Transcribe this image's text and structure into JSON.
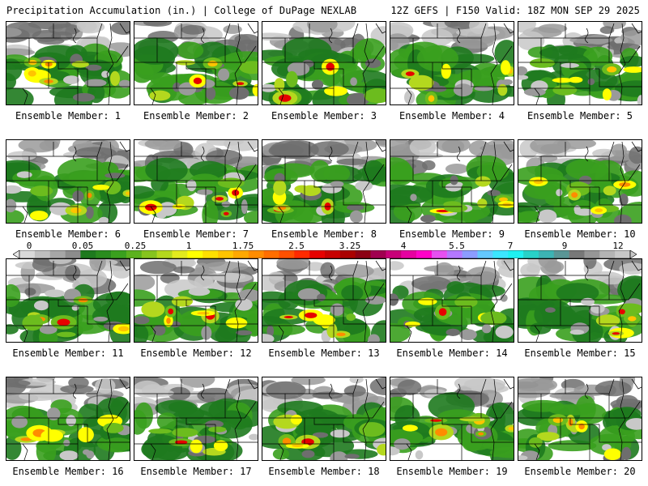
{
  "header": {
    "title": "Precipitation Accumulation (in.) | College of DuPage NEXLAB",
    "run_info": "12Z GEFS | F150 Valid: 18Z MON SEP 29 2025"
  },
  "members": [
    {
      "label": "Ensemble Member: 1"
    },
    {
      "label": "Ensemble Member: 2"
    },
    {
      "label": "Ensemble Member: 3"
    },
    {
      "label": "Ensemble Member: 4"
    },
    {
      "label": "Ensemble Member: 5"
    },
    {
      "label": "Ensemble Member: 6"
    },
    {
      "label": "Ensemble Member: 7"
    },
    {
      "label": "Ensemble Member: 8"
    },
    {
      "label": "Ensemble Member: 9"
    },
    {
      "label": "Ensemble Member: 10"
    },
    {
      "label": "Ensemble Member: 11"
    },
    {
      "label": "Ensemble Member: 12"
    },
    {
      "label": "Ensemble Member: 13"
    },
    {
      "label": "Ensemble Member: 14"
    },
    {
      "label": "Ensemble Member: 15"
    },
    {
      "label": "Ensemble Member: 16"
    },
    {
      "label": "Ensemble Member: 17"
    },
    {
      "label": "Ensemble Member: 18"
    },
    {
      "label": "Ensemble Member: 19"
    },
    {
      "label": "Ensemble Member: 20"
    }
  ],
  "colorbar": {
    "tick_labels": [
      "0",
      "0.05",
      "0.25",
      "1",
      "1.75",
      "2.5",
      "3.25",
      "4",
      "5.5",
      "7",
      "9",
      "12"
    ],
    "colors": [
      "#d9d9d9",
      "#bfbfbf",
      "#a6a6a6",
      "#8c8c8c",
      "#1e7a1e",
      "#2a8c1e",
      "#3aa01e",
      "#5cb21e",
      "#86c41e",
      "#b4d81e",
      "#e2ea1e",
      "#ffff00",
      "#ffe000",
      "#ffc400",
      "#ffa800",
      "#ff8c00",
      "#ff6e00",
      "#ff5000",
      "#ff2a00",
      "#e60000",
      "#c80000",
      "#aa0000",
      "#8c0014",
      "#a00050",
      "#c80078",
      "#e600a0",
      "#ff00c8",
      "#e650f0",
      "#b478ff",
      "#8c9cff",
      "#64c8ff",
      "#3ce6ff",
      "#1ef0f0",
      "#28d2c8",
      "#3cb4b4",
      "#5a9696",
      "#787878",
      "#969696",
      "#b4b4b4",
      "#c8c8c8"
    ]
  }
}
